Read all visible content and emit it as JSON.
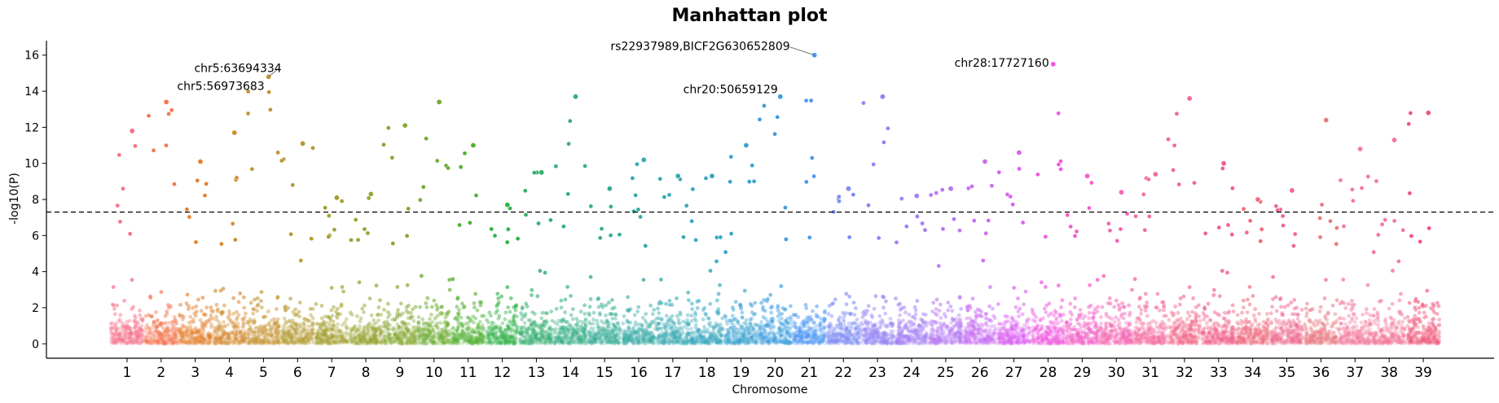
{
  "chart_data": {
    "type": "scatter",
    "title": "Manhattan plot",
    "xlabel": "Chromosome",
    "ylabel": "-log10(P)",
    "ylim": [
      -0.8,
      16.8
    ],
    "yticks": [
      0,
      2,
      4,
      6,
      8,
      10,
      12,
      14,
      16
    ],
    "significance_line": 7.3,
    "grid": false,
    "legend": "none",
    "chromosomes": [
      "1",
      "2",
      "3",
      "4",
      "5",
      "6",
      "7",
      "8",
      "9",
      "10",
      "11",
      "12",
      "13",
      "14",
      "15",
      "16",
      "17",
      "18",
      "19",
      "20",
      "21",
      "22",
      "23",
      "24",
      "25",
      "26",
      "27",
      "28",
      "29",
      "30",
      "31",
      "32",
      "33",
      "34",
      "35",
      "36",
      "37",
      "38",
      "39"
    ],
    "chromosome_colors": [
      "#f77189",
      "#f7754f",
      "#e5802f",
      "#d58c32",
      "#c69432",
      "#b49b32",
      "#a4a031",
      "#97a431",
      "#86a831",
      "#6fad32",
      "#50b131",
      "#32b24b",
      "#34af6f",
      "#36ae86",
      "#37ad96",
      "#38aba6",
      "#39aab3",
      "#3aa8c1",
      "#3ba3d0",
      "#3d9ee0",
      "#4c97f4",
      "#7b8af5",
      "#9383f5",
      "#a37df5",
      "#b577f4",
      "#c86df4",
      "#dc5ff3",
      "#f25ae0",
      "#f45fc7",
      "#f565b2",
      "#f56c9f",
      "#f36a8b",
      "#f2608a",
      "#f06b7d",
      "#ef6a90",
      "#e97a82",
      "#f47b9e",
      "#f4799c",
      "#f0577a"
    ],
    "top_hits": [
      {
        "chromosome": "1",
        "value": 11.8
      },
      {
        "chromosome": "2",
        "value": 13.4
      },
      {
        "chromosome": "3",
        "value": 10.1
      },
      {
        "chromosome": "4",
        "value": 11.7
      },
      {
        "chromosome": "5",
        "value": 14.8
      },
      {
        "chromosome": "6",
        "value": 11.1
      },
      {
        "chromosome": "7",
        "value": 8.1
      },
      {
        "chromosome": "8",
        "value": 8.3
      },
      {
        "chromosome": "9",
        "value": 12.1
      },
      {
        "chromosome": "10",
        "value": 13.4
      },
      {
        "chromosome": "11",
        "value": 11.0
      },
      {
        "chromosome": "12",
        "value": 7.7
      },
      {
        "chromosome": "13",
        "value": 9.5
      },
      {
        "chromosome": "14",
        "value": 13.7
      },
      {
        "chromosome": "15",
        "value": 8.6
      },
      {
        "chromosome": "16",
        "value": 10.2
      },
      {
        "chromosome": "17",
        "value": 9.3
      },
      {
        "chromosome": "18",
        "value": 9.3
      },
      {
        "chromosome": "19",
        "value": 11.0
      },
      {
        "chromosome": "20",
        "value": 13.7
      },
      {
        "chromosome": "21",
        "value": 16.0
      },
      {
        "chromosome": "22",
        "value": 8.6
      },
      {
        "chromosome": "23",
        "value": 13.7
      },
      {
        "chromosome": "24",
        "value": 8.2
      },
      {
        "chromosome": "25",
        "value": 8.6
      },
      {
        "chromosome": "26",
        "value": 10.1
      },
      {
        "chromosome": "27",
        "value": 10.6
      },
      {
        "chromosome": "28",
        "value": 15.5
      },
      {
        "chromosome": "29",
        "value": 9.3
      },
      {
        "chromosome": "30",
        "value": 8.4
      },
      {
        "chromosome": "31",
        "value": 9.4
      },
      {
        "chromosome": "32",
        "value": 13.6
      },
      {
        "chromosome": "33",
        "value": 10.0
      },
      {
        "chromosome": "34",
        "value": 8.0
      },
      {
        "chromosome": "35",
        "value": 8.5
      },
      {
        "chromosome": "36",
        "value": 12.4
      },
      {
        "chromosome": "37",
        "value": 10.8
      },
      {
        "chromosome": "38",
        "value": 11.3
      },
      {
        "chromosome": "39",
        "value": 12.8
      }
    ],
    "annotations": [
      {
        "text": "rs22937989,BICF2G630652809",
        "chromosome": "21",
        "value": 16.0
      },
      {
        "text": "chr28:17727160",
        "chromosome": "28",
        "value": 15.5
      },
      {
        "text": "chr5:63694334",
        "chromosome": "5",
        "value": 14.8
      },
      {
        "text": "chr5:56973683",
        "chromosome": "5",
        "value": 14.2
      },
      {
        "text": "chr20:50659129",
        "chromosome": "20",
        "value": 13.7
      }
    ]
  }
}
